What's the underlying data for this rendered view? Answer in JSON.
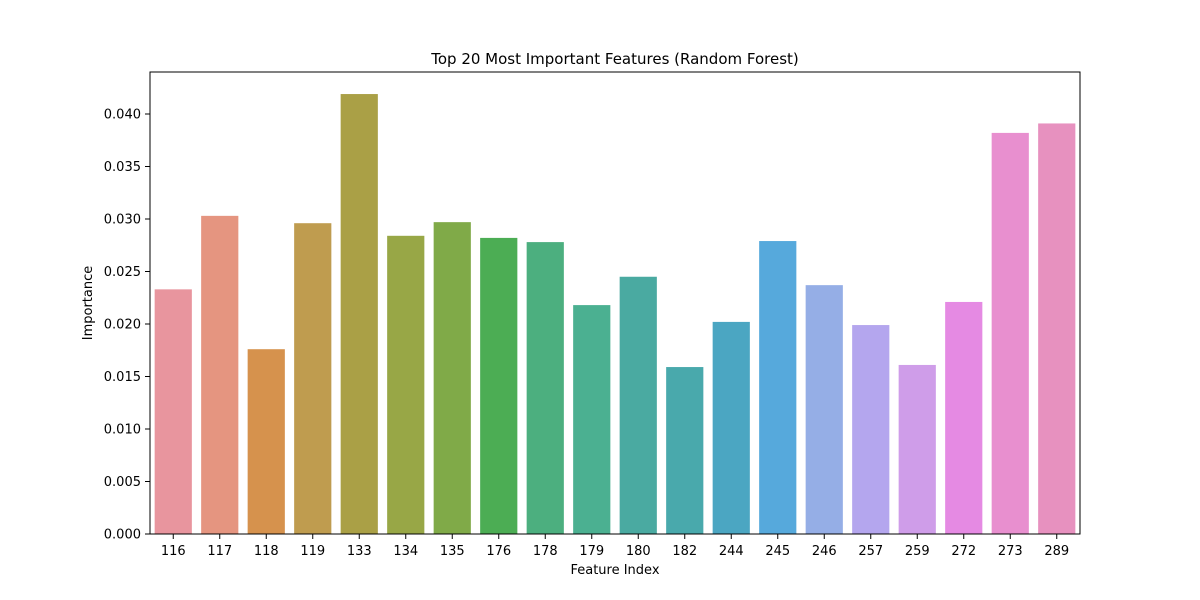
{
  "chart_data": {
    "type": "bar",
    "title": "Top 20 Most Important Features (Random Forest)",
    "xlabel": "Feature Index",
    "ylabel": "Importance",
    "categories": [
      "116",
      "117",
      "118",
      "119",
      "133",
      "134",
      "135",
      "176",
      "178",
      "179",
      "180",
      "182",
      "244",
      "245",
      "246",
      "257",
      "259",
      "272",
      "273",
      "289"
    ],
    "values": [
      0.0233,
      0.0303,
      0.0176,
      0.0296,
      0.0419,
      0.0284,
      0.0297,
      0.0282,
      0.0278,
      0.0218,
      0.0245,
      0.0159,
      0.0202,
      0.0279,
      0.0237,
      0.0199,
      0.0161,
      0.0221,
      0.0382,
      0.0391
    ],
    "colors": [
      "#e8959e",
      "#e59580",
      "#d6924d",
      "#bf9c4f",
      "#aaa046",
      "#98a746",
      "#80aa48",
      "#4cad54",
      "#4caf7f",
      "#4bb091",
      "#4aaaa1",
      "#49a9ac",
      "#4ba6c2",
      "#56a9dc",
      "#95aee6",
      "#b4a6ee",
      "#cf9de9",
      "#e58ae3",
      "#e88fcf",
      "#e791bf"
    ],
    "yticks": [
      "0.000",
      "0.005",
      "0.010",
      "0.015",
      "0.020",
      "0.025",
      "0.030",
      "0.035",
      "0.040"
    ],
    "ylim": [
      0,
      0.044
    ],
    "grid": false,
    "legend": "none"
  }
}
